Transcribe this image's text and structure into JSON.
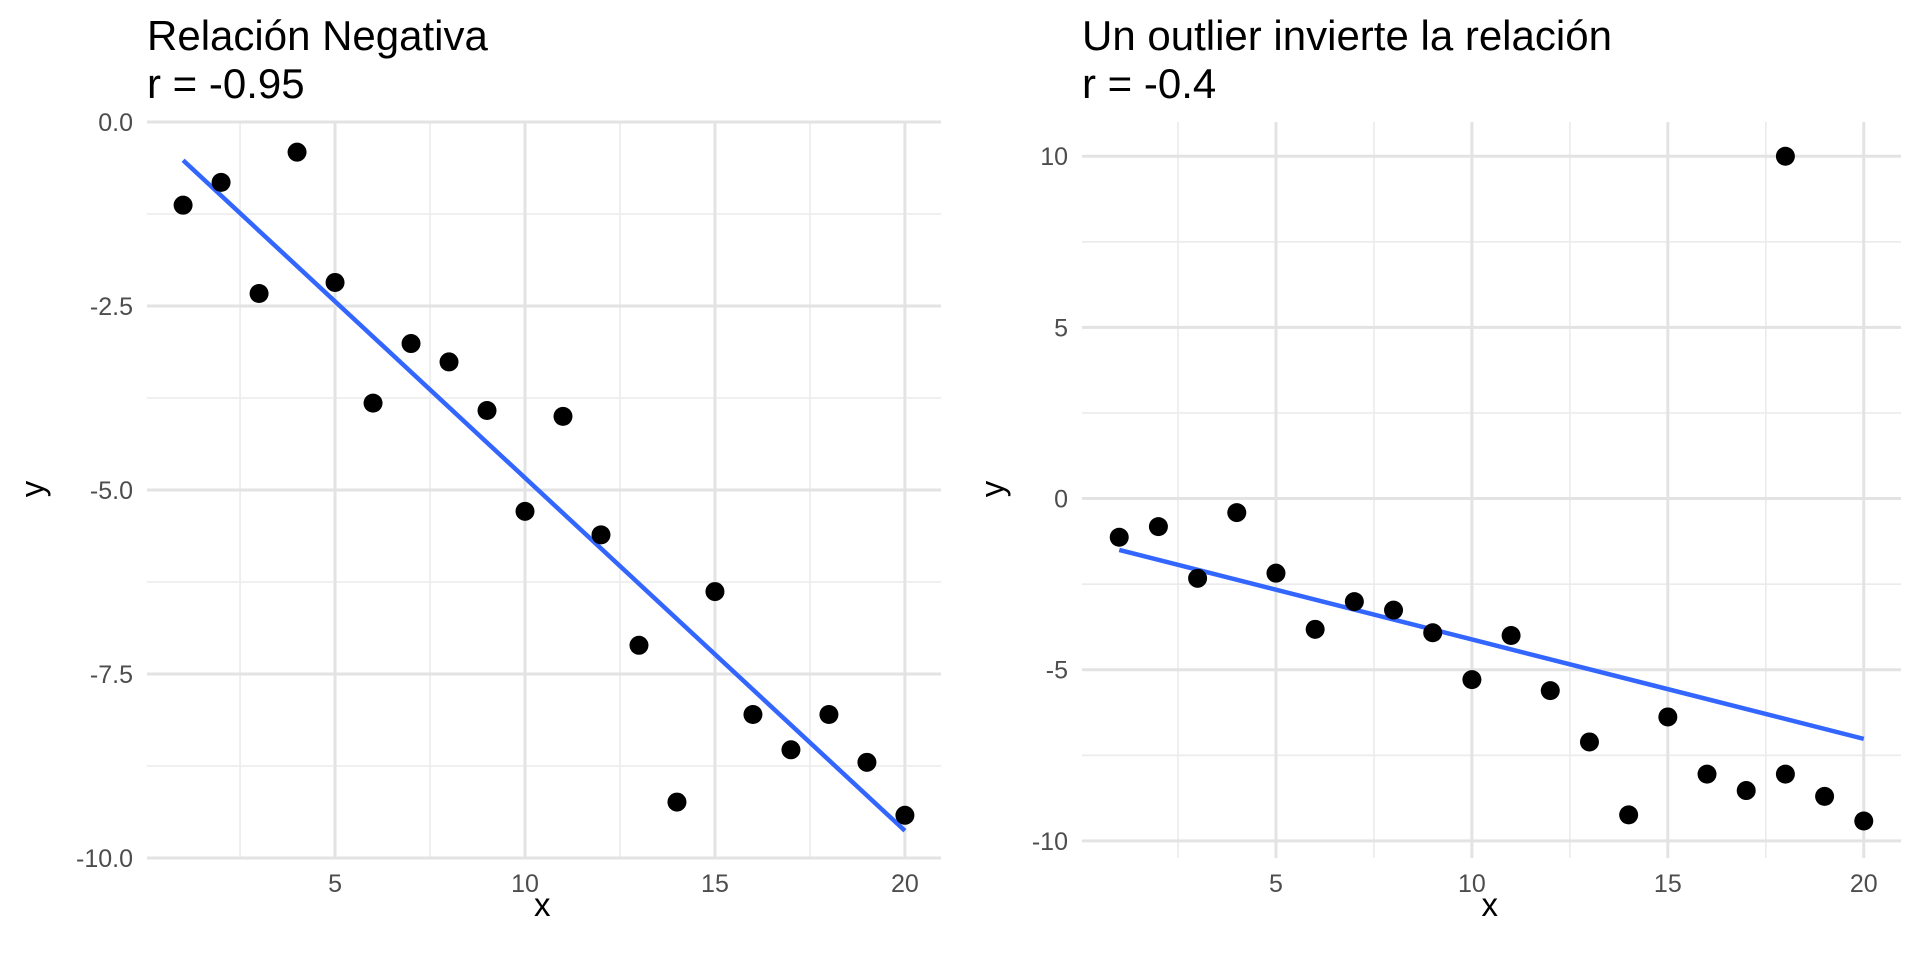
{
  "chart_data": [
    {
      "type": "scatter",
      "title": "Relación Negativa",
      "subtitle": "r = -0.95",
      "xlabel": "x",
      "ylabel": "y",
      "xlim": [
        0.05,
        20.95
      ],
      "ylim": [
        -10.0,
        0.0
      ],
      "x_ticks": [
        5,
        10,
        15,
        20
      ],
      "y_ticks": [
        -10.0,
        -7.5,
        -5.0,
        -2.5,
        0.0
      ],
      "x_tick_labels": [
        "5",
        "10",
        "15",
        "20"
      ],
      "y_tick_labels": [
        "-10.0",
        "-7.5",
        "-5.0",
        "-2.5",
        "0.0"
      ],
      "grid": true,
      "point_color": "#000000",
      "line_color": "#3366FF",
      "series": [
        {
          "x": [
            1,
            2,
            3,
            4,
            5,
            6,
            7,
            8,
            9,
            10,
            11,
            12,
            13,
            14,
            15,
            16,
            17,
            18,
            19,
            20
          ],
          "y": [
            -1.13,
            -0.82,
            -2.33,
            -0.41,
            -2.18,
            -3.82,
            -3.01,
            -3.26,
            -3.92,
            -5.29,
            -4.0,
            -5.61,
            -7.11,
            -9.24,
            -6.38,
            -8.05,
            -8.53,
            -8.05,
            -8.7,
            -9.42
          ]
        }
      ],
      "fit_line": {
        "x": [
          1,
          20
        ],
        "y": [
          -0.52,
          -9.63
        ]
      }
    },
    {
      "type": "scatter",
      "title": "Un outlier invierte la relación",
      "subtitle": "r = -0.4",
      "xlabel": "x",
      "ylabel": "y",
      "xlim": [
        0.05,
        20.95
      ],
      "ylim": [
        -10.5,
        11.0
      ],
      "x_ticks": [
        5,
        10,
        15,
        20
      ],
      "y_ticks": [
        -10,
        -5,
        0,
        5,
        10
      ],
      "x_tick_labels": [
        "5",
        "10",
        "15",
        "20"
      ],
      "y_tick_labels": [
        "-10",
        "-5",
        "0",
        "5",
        "10"
      ],
      "grid": true,
      "point_color": "#000000",
      "line_color": "#3366FF",
      "series": [
        {
          "x": [
            1,
            2,
            3,
            4,
            5,
            6,
            7,
            8,
            9,
            10,
            11,
            12,
            13,
            14,
            15,
            16,
            17,
            18,
            19,
            20
          ],
          "y": [
            -1.13,
            -0.82,
            -2.33,
            -0.41,
            -2.18,
            -3.82,
            -3.01,
            -3.26,
            -3.92,
            -5.29,
            -4.0,
            -5.61,
            -7.11,
            -9.24,
            -6.38,
            -8.05,
            -8.53,
            10.0,
            -8.7,
            -9.42
          ]
        },
        {
          "x": [
            18
          ],
          "y": [
            -8.05
          ]
        }
      ],
      "fit_line": {
        "x": [
          1,
          20
        ],
        "y": [
          -1.5,
          -7.02
        ]
      }
    }
  ]
}
